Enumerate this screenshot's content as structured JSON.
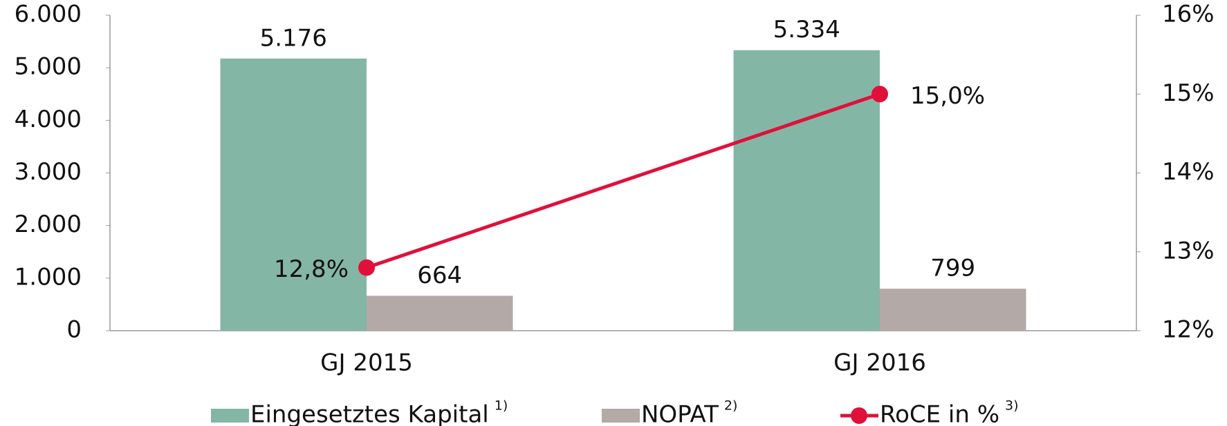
{
  "chart_data": {
    "type": "bar",
    "categories": [
      "GJ 2015",
      "GJ 2016"
    ],
    "series": [
      {
        "name": "Eingesetztes Kapital",
        "note": "1)",
        "color": "#84b6a6",
        "values": [
          5176,
          5334
        ],
        "value_labels": [
          "5.176",
          "5.334"
        ]
      },
      {
        "name": "NOPAT",
        "note": "2)",
        "color": "#b3a9a7",
        "values": [
          664,
          799
        ],
        "value_labels": [
          "664",
          "799"
        ]
      },
      {
        "name": "RoCE in %",
        "note": "3)",
        "type": "line",
        "axis": "y2",
        "color": "#e0103a",
        "values": [
          12.8,
          15.0
        ],
        "value_labels": [
          "12,8%",
          "15,0%"
        ]
      }
    ],
    "ylim": [
      0,
      6000
    ],
    "yticks": [
      0,
      {
        "value": 1000,
        "label": "1.000"
      },
      {
        "value": 2000,
        "label": "2.000"
      },
      {
        "value": 3000,
        "label": "3.000"
      },
      {
        "value": 4000,
        "label": "4.000"
      },
      {
        "value": 5000,
        "label": "5.000"
      },
      {
        "value": 6000,
        "label": "6.000"
      }
    ],
    "y2lim": [
      12,
      16
    ],
    "y2ticks": [
      {
        "value": 12,
        "label": "12%"
      },
      {
        "value": 13,
        "label": "13%"
      },
      {
        "value": 14,
        "label": "14%"
      },
      {
        "value": 15,
        "label": "15%"
      },
      {
        "value": 16,
        "label": "16%"
      }
    ],
    "legend": "bottom",
    "grid": false
  }
}
